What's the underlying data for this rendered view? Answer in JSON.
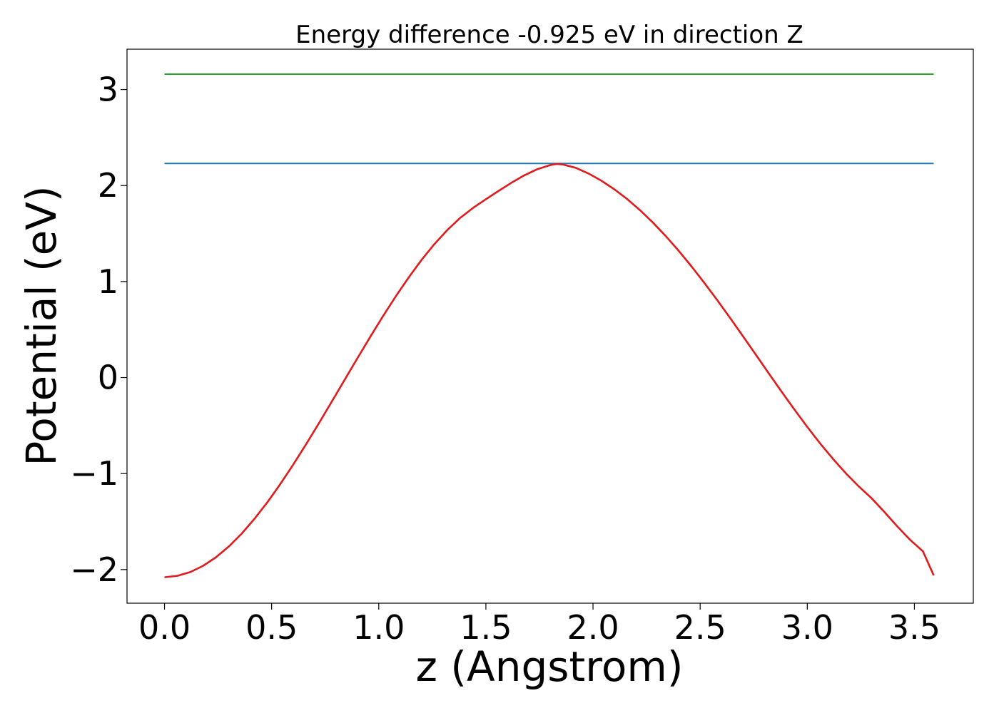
{
  "chart_data": {
    "type": "line",
    "title": "Energy difference -0.925 eV in direction Z",
    "xlabel": "z (Angstrom)",
    "ylabel": "Potential (eV)",
    "xlim": [
      -0.175,
      3.775
    ],
    "ylim": [
      -2.35,
      3.42
    ],
    "xticks": [
      0.0,
      0.5,
      1.0,
      1.5,
      2.0,
      2.5,
      3.0,
      3.5
    ],
    "xtick_labels": [
      "0.0",
      "0.5",
      "1.0",
      "1.5",
      "2.0",
      "2.5",
      "3.0",
      "3.5"
    ],
    "yticks": [
      -2,
      -1,
      0,
      1,
      2,
      3
    ],
    "ytick_labels": [
      "−2",
      "−1",
      "0",
      "1",
      "2",
      "3"
    ],
    "grid": false,
    "series": [
      {
        "color": "#2ca02c",
        "kind": "hline",
        "x": [
          0.0,
          3.59
        ],
        "y": [
          3.16,
          3.16
        ]
      },
      {
        "color": "#1f77b4",
        "kind": "hline",
        "x": [
          0.0,
          3.59
        ],
        "y": [
          2.23,
          2.23
        ]
      },
      {
        "color": "#e31a1c",
        "kind": "curve",
        "x": [
          0.0,
          0.06,
          0.12,
          0.18,
          0.24,
          0.3,
          0.36,
          0.42,
          0.48,
          0.54,
          0.6,
          0.66,
          0.72,
          0.78,
          0.84,
          0.9,
          0.96,
          1.02,
          1.08,
          1.14,
          1.2,
          1.26,
          1.32,
          1.38,
          1.44,
          1.5,
          1.56,
          1.62,
          1.68,
          1.74,
          1.8,
          1.83,
          1.86,
          1.92,
          1.98,
          2.04,
          2.1,
          2.16,
          2.22,
          2.28,
          2.34,
          2.4,
          2.46,
          2.52,
          2.58,
          2.64,
          2.7,
          2.76,
          2.82,
          2.88,
          2.94,
          3.0,
          3.06,
          3.12,
          3.18,
          3.24,
          3.3,
          3.36,
          3.42,
          3.48,
          3.54,
          3.59
        ],
        "y": [
          -2.08,
          -2.065,
          -2.026,
          -1.961,
          -1.872,
          -1.76,
          -1.626,
          -1.471,
          -1.299,
          -1.111,
          -0.909,
          -0.697,
          -0.478,
          -0.253,
          -0.026,
          0.2,
          0.423,
          0.64,
          0.848,
          1.044,
          1.226,
          1.391,
          1.537,
          1.663,
          1.767,
          1.857,
          1.945,
          2.03,
          2.107,
          2.17,
          2.213,
          2.225,
          2.219,
          2.184,
          2.124,
          2.049,
          1.96,
          1.858,
          1.742,
          1.613,
          1.472,
          1.32,
          1.157,
          0.985,
          0.806,
          0.62,
          0.43,
          0.238,
          0.045,
          -0.146,
          -0.333,
          -0.514,
          -0.686,
          -0.847,
          -0.997,
          -1.133,
          -1.256,
          -1.4,
          -1.55,
          -1.69,
          -1.81,
          -2.06
        ]
      }
    ]
  }
}
